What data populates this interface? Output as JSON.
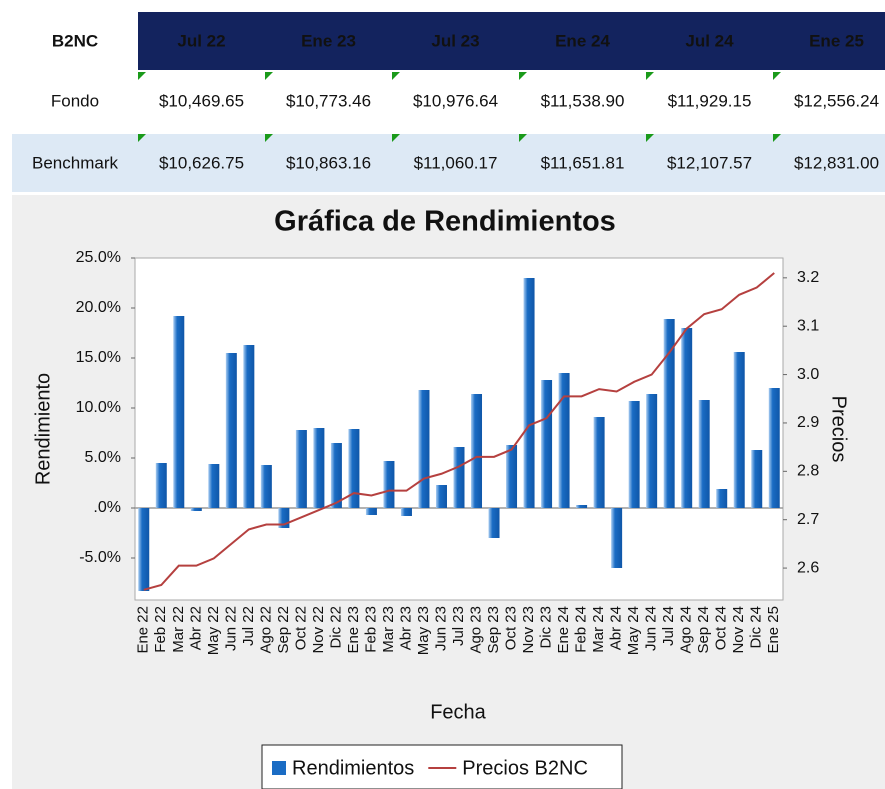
{
  "table": {
    "header": [
      "B2NC",
      "Jul 22",
      "Ene 23",
      "Jul 23",
      "Ene 24",
      "Jul 24",
      "Ene 25"
    ],
    "rows": [
      [
        "Fondo",
        "$10,469.65",
        "$10,773.46",
        "$10,976.64",
        "$11,538.90",
        "$11,929.15",
        "$12,556.24"
      ],
      [
        "Benchmark",
        "$10,626.75",
        "$10,863.16",
        "$11,060.17",
        "$11,651.81",
        "$12,107.57",
        "$12,831.00"
      ]
    ]
  },
  "chart_data": {
    "type": "bar",
    "title": "Gráfica de Rendimientos",
    "x_label": "Fecha",
    "y_label": "Rendimiento",
    "y2_label": "Precios",
    "categories": [
      "Ene 22",
      "Feb 22",
      "Mar 22",
      "Abr 22",
      "May 22",
      "Jun 22",
      "Jul 22",
      "Ago 22",
      "Sep 22",
      "Oct 22",
      "Nov 22",
      "Dic 22",
      "Ene 23",
      "Feb 23",
      "Mar 23",
      "Abr 23",
      "May 23",
      "Jun 23",
      "Jul 23",
      "Ago 23",
      "Sep 23",
      "Oct 23",
      "Nov 23",
      "Dic 23",
      "Ene 24",
      "Feb 24",
      "Mar 24",
      "Abr 24",
      "May 24",
      "Jun 24",
      "Jul 24",
      "Ago 24",
      "Sep 24",
      "Oct 24",
      "Nov 24",
      "Dic 24",
      "Ene 25"
    ],
    "series": [
      {
        "name": "Rendimientos",
        "type": "bar",
        "color": "#1a6cc4",
        "values": [
          -8.3,
          4.5,
          19.2,
          -0.3,
          4.4,
          15.5,
          16.3,
          4.3,
          -2.0,
          7.8,
          8.0,
          6.5,
          7.9,
          -0.7,
          4.7,
          -0.8,
          11.8,
          2.3,
          6.1,
          11.4,
          -3.0,
          6.3,
          23.0,
          12.8,
          13.5,
          0.3,
          9.1,
          -6.0,
          10.7,
          11.4,
          18.9,
          18.0,
          10.8,
          1.9,
          15.6,
          5.8,
          12.0
        ]
      },
      {
        "name": "Precios B2NC",
        "type": "line",
        "axis": "y2",
        "color": "#b5403f",
        "values": [
          2.555,
          2.565,
          2.605,
          2.605,
          2.62,
          2.65,
          2.68,
          2.69,
          2.69,
          2.705,
          2.72,
          2.735,
          2.755,
          2.75,
          2.76,
          2.76,
          2.785,
          2.795,
          2.81,
          2.83,
          2.83,
          2.845,
          2.895,
          2.91,
          2.955,
          2.955,
          2.97,
          2.965,
          2.985,
          3.0,
          3.045,
          3.095,
          3.125,
          3.135,
          3.165,
          3.18,
          3.21
        ]
      }
    ],
    "ylim": [
      -9.2,
      25
    ],
    "yticks": [
      {
        "value": -5,
        "label": "-5.0%"
      },
      {
        "value": 0,
        "label": ".0%"
      },
      {
        "value": 5,
        "label": "5.0%"
      },
      {
        "value": 10,
        "label": "10.0%"
      },
      {
        "value": 15,
        "label": "15.0%"
      },
      {
        "value": 20,
        "label": "20.0%"
      },
      {
        "value": 25,
        "label": "25.0%"
      }
    ],
    "y2lim": [
      2.534,
      3.241
    ],
    "y2ticks": [
      2.6,
      2.7,
      2.8,
      2.9,
      {
        "value": 3,
        "label": "3.0"
      },
      3.1,
      3.2
    ],
    "legend": "bottom"
  }
}
